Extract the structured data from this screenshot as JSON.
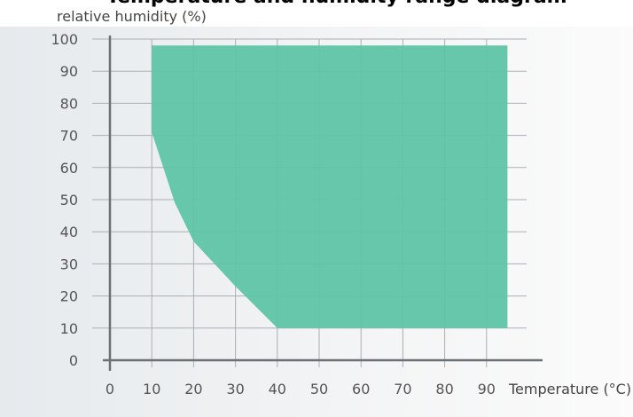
{
  "page_title_fragment": "Temperature and humidity range diagram",
  "chart_data": {
    "type": "area",
    "title": "",
    "xlabel": "Temperature (°C)",
    "ylabel": "relative humidity (%)",
    "xlim": [
      0,
      95
    ],
    "ylim": [
      0,
      100
    ],
    "x_ticks": [
      0,
      10,
      20,
      30,
      40,
      50,
      60,
      70,
      80,
      90
    ],
    "y_ticks": [
      0,
      10,
      20,
      30,
      40,
      50,
      60,
      70,
      80,
      90,
      100
    ],
    "grid": true,
    "region": {
      "fill": "#5fc4a6",
      "points": [
        [
          10,
          98
        ],
        [
          95,
          98
        ],
        [
          95,
          10
        ],
        [
          40,
          10
        ],
        [
          30,
          23
        ],
        [
          20,
          37
        ],
        [
          15.5,
          49
        ],
        [
          10,
          71
        ]
      ]
    }
  }
}
